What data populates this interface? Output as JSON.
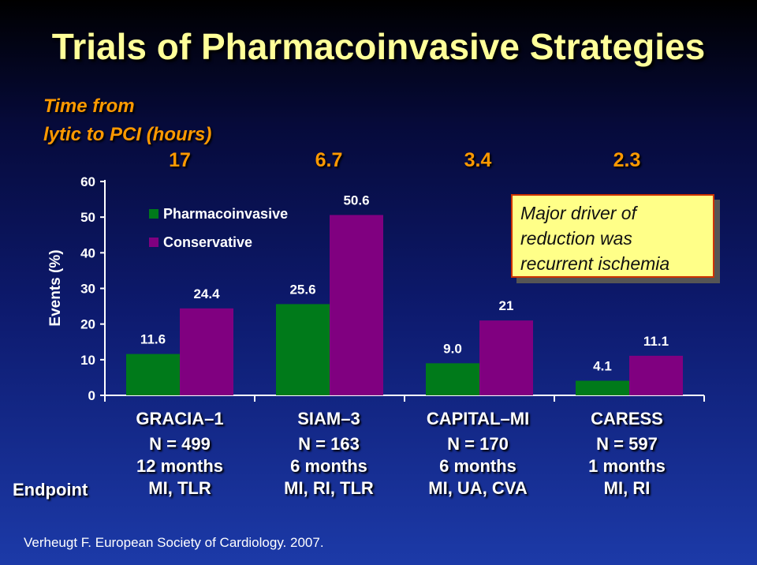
{
  "slide": {
    "title": "Trials of Pharmacoinvasive Strategies",
    "time_label_line1": "Time from",
    "time_label_line2": "lytic to PCI (hours)",
    "callout": [
      "Major driver of",
      "reduction was",
      "recurrent ischemia"
    ],
    "endpoint_label": "Endpoint",
    "source": "Verheugt F. European Society of Cardiology. 2007."
  },
  "trials": [
    {
      "name": "GRACIA–1",
      "hours": "17",
      "n": "N = 499",
      "duration": "12 months",
      "endpoint": "MI, TLR"
    },
    {
      "name": "SIAM–3",
      "hours": "6.7",
      "n": "N = 163",
      "duration": "6 months",
      "endpoint": "MI, RI, TLR"
    },
    {
      "name": "CAPITAL–MI",
      "hours": "3.4",
      "n": "N = 170",
      "duration": "6 months",
      "endpoint": "MI, UA, CVA"
    },
    {
      "name": "CARESS",
      "hours": "2.3",
      "n": "N = 597",
      "duration": "1 months",
      "endpoint": "MI, RI"
    }
  ],
  "chart_data": {
    "type": "bar",
    "categories": [
      "GRACIA–1",
      "SIAM–3",
      "CAPITAL–MI",
      "CARESS"
    ],
    "series": [
      {
        "name": "Pharmacoinvasive",
        "color": "#007a1a",
        "values": [
          11.6,
          25.6,
          9.0,
          4.1
        ],
        "labels": [
          "11.6",
          "25.6",
          "9.0",
          "4.1"
        ]
      },
      {
        "name": "Conservative",
        "color": "#800080",
        "values": [
          24.4,
          50.6,
          21,
          11.1
        ],
        "labels": [
          "24.4",
          "50.6",
          "21",
          "11.1"
        ]
      }
    ],
    "ylabel": "Events (%)",
    "ylim": [
      0,
      60
    ],
    "yticks": [
      0,
      10,
      20,
      30,
      40,
      50,
      60
    ],
    "legend_position": "top-left",
    "grid": false
  }
}
